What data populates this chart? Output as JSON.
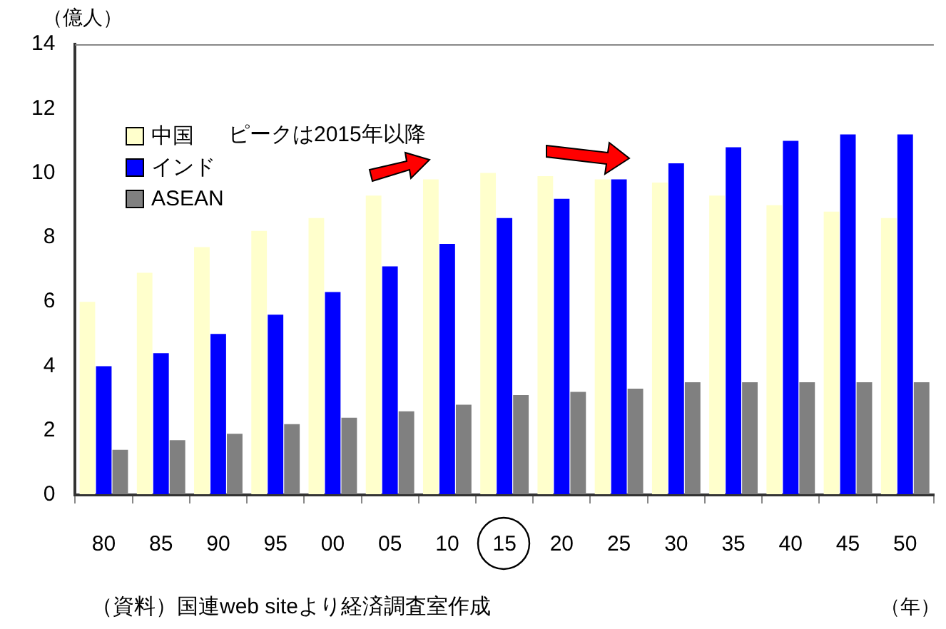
{
  "chart_data": {
    "type": "bar",
    "ylabel": "（億人）",
    "xlabel": "（年）",
    "categories": [
      "80",
      "85",
      "90",
      "95",
      "00",
      "05",
      "10",
      "15",
      "20",
      "25",
      "30",
      "35",
      "40",
      "45",
      "50"
    ],
    "series": [
      {
        "name": "中国",
        "color": "#ffffcc",
        "values": [
          6.0,
          6.9,
          7.7,
          8.2,
          8.6,
          9.3,
          9.8,
          10.0,
          9.9,
          9.8,
          9.7,
          9.3,
          9.0,
          8.8,
          8.6
        ]
      },
      {
        "name": "インド",
        "color": "#0000ff",
        "values": [
          4.0,
          4.4,
          5.0,
          5.6,
          6.3,
          7.1,
          7.8,
          8.6,
          9.2,
          9.8,
          10.3,
          10.8,
          11.0,
          11.2,
          11.2
        ]
      },
      {
        "name": "ASEAN",
        "color": "#808080",
        "values": [
          1.4,
          1.7,
          1.9,
          2.2,
          2.4,
          2.6,
          2.8,
          3.1,
          3.2,
          3.3,
          3.5,
          3.5,
          3.5,
          3.5,
          3.5
        ]
      }
    ],
    "ylim": [
      0,
      14
    ],
    "yticks": [
      0,
      2,
      4,
      6,
      8,
      10,
      12,
      14
    ],
    "grid": false,
    "legend": "top left",
    "annotations": [
      "ピークは2015年以降",
      "（資料）国連web siteより経済調査室作成"
    ]
  }
}
